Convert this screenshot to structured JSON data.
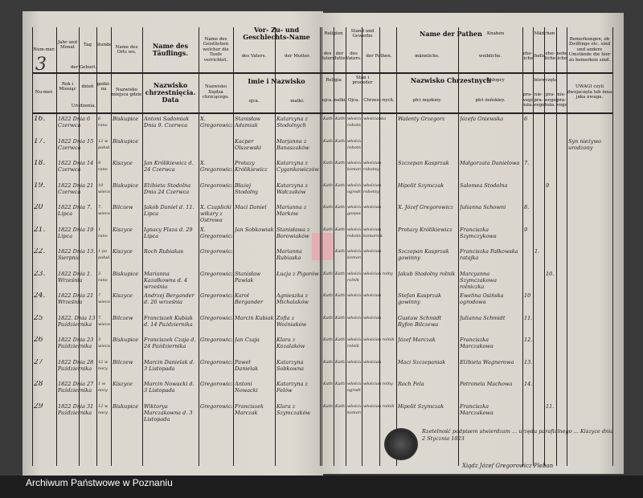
{
  "page_number": "3",
  "archive_label": "Archiwum Państwowe w Poznaniu",
  "headers_left": [
    {
      "de": "Num-mer.",
      "pl": "Nu-mer."
    },
    {
      "de": "Jahr und Monat",
      "pl": "Rok i Miesiąc"
    },
    {
      "de": "Tag",
      "pl": "dzień"
    },
    {
      "de": "Stunde",
      "pl": "godzi-na"
    },
    {
      "de": "Name des Orts wo.",
      "pl": "Nazwisko miejsca gdzie"
    },
    {
      "de": "Name des Täuflings.",
      "pl": "Nazwisko chrzestnięcia. Data"
    },
    {
      "de": "Name des Geistlichen welcher die Taufe verrichtet.",
      "pl": "Nazwisko Xiędza chrzcącego."
    },
    {
      "de": "des Vaters.",
      "pl": "ojca."
    },
    {
      "de": "der Mutter.",
      "pl": "matki."
    }
  ],
  "header_groups_left": {
    "birth_de": "der Geburt.",
    "birth_pl": "Urodzenia.",
    "parents_de": "Vor- Zu- und Geschlechts-Name",
    "parents_pl": "Imie i Nazwisko"
  },
  "headers_right": [
    {
      "de": "des Vaters",
      "pl": "ojca."
    },
    {
      "de": "der Mutter",
      "pl": "matki."
    },
    {
      "de": "des Vaters.",
      "pl": "Ojca."
    },
    {
      "de": "der Pathen.",
      "pl": "Chrzest-nych."
    },
    {
      "de": "männliche.",
      "pl": "płci męzkiey."
    },
    {
      "de": "weibliche.",
      "pl": "płci żeńskiey."
    },
    {
      "de": "ehe-liche",
      "pl": "pra-wego łoża."
    },
    {
      "de": "uneheliche",
      "pl": "nie-pra-wego"
    },
    {
      "de": "ehe-liche",
      "pl": "pra-wego łoża."
    },
    {
      "de": "unehe-liche",
      "pl": "nie-pra-wego"
    },
    {
      "de": "Bemerkungen, ob Zwillinge etc. sind und andere Umstände die hier zu bemerken sind.",
      "pl": "UWAGI czyli dwojaczęta lub inna jaka uwaga."
    }
  ],
  "header_groups_right": {
    "religion_de": "Religion",
    "religion_pl": "Religia",
    "stand_de": "Stand und Gewerbe",
    "stand_pl": "Stan i proceder",
    "godparents_de": "Name der Pathen",
    "godparents_pl": "Nazwisko Chrzestnych",
    "boys_de": "Knaben",
    "boys_pl": "Chłopcy",
    "girls_de": "Mädchen",
    "girls_pl": "Dziewczęta"
  },
  "entries": [
    {
      "nr": "16.",
      "date": "1822 Dnia 6 Czerwca",
      "hour": "6 rano",
      "place": "Biskupice",
      "child": "Antoni Sadomiak Dnia 9. Czerwca",
      "priest": "X. Gregorowicz",
      "father": "Stanisław Adamiak",
      "mother": "Katarzyna z Stodolnych",
      "rel_f": "Kath",
      "rel_m": "Kath",
      "stand_f": "włościan robotny",
      "stand_g": "włościanka",
      "godfather": "Walenty Grzegorz",
      "godmother": "Józefa Gniewska",
      "boys_l": "6",
      "boys_i": "",
      "girls_l": "",
      "girls_i": "",
      "remarks": ""
    },
    {
      "nr": "17.",
      "date": "1822 Dnia 15 Czerwca",
      "hour": "12 w połud.",
      "place": "Biskupice",
      "child": "",
      "priest": "",
      "father": "Kacper Olszewski",
      "mother": "Marjanna z Banaszaków",
      "rel_f": "Kath",
      "rel_m": "Kath",
      "stand_f": "włościan robotny",
      "stand_g": "",
      "godfather": "",
      "godmother": "",
      "boys_l": "",
      "boys_i": "",
      "girls_l": "",
      "girls_i": "",
      "remarks": "Syn nieżywo urodzony"
    },
    {
      "nr": "18.",
      "date": "1822 Dnia 14 Czerwca",
      "hour": "8 rano",
      "place": "Kiszyce",
      "child": "Jan Królikiewicz d. 24 Czerwca",
      "priest": "X. Gregorowicz",
      "father": "Protazy Królikiewicz",
      "mother": "Katarzyna z Cygankowiczów",
      "rel_f": "Kath",
      "rel_m": "Kath",
      "stand_f": "włościan komornik",
      "stand_g": "włościan robotny",
      "godfather": "Szczepan Kasprzak",
      "godmother": "Małgorzata Danielowa",
      "boys_l": "7.",
      "boys_i": "",
      "girls_l": "",
      "girls_i": "",
      "remarks": ""
    },
    {
      "nr": "19.",
      "date": "1822 Dnia 21 Czerwca",
      "hour": "10 wieczór",
      "place": "Biskupice",
      "child": "Elżbieta Stodolna Dnia 24 Czerwca",
      "priest": "Gregorowicz",
      "father": "Błażej Stodolny",
      "mother": "Katarzyna z Wałczaków",
      "rel_f": "Kath",
      "rel_m": "Kath",
      "stand_f": "włościan ogrodnik",
      "stand_g": "włościan robotny",
      "godfather": "Hipolit Szymczak",
      "godmother": "Salomea Stodolna",
      "boys_l": "",
      "boys_i": "",
      "girls_l": "9",
      "girls_i": "",
      "remarks": ""
    },
    {
      "nr": "20",
      "date": "1822 Dnia 7. Lipca",
      "hour": "7. wieczór",
      "place": "Bilczew",
      "child": "Jakób Daniel d. 11. Lipca",
      "priest": "X. Czaplicki wikary z Ostrowa",
      "father": "Maci Daniel",
      "mother": "Marianna z Marków",
      "rel_f": "Kath",
      "rel_m": "Kath",
      "stand_f": "włościan gospodarz",
      "stand_g": "włościan",
      "godfather": "X. Józef Gregorowicz",
      "godmother": "Julianna Schowni",
      "boys_l": "8.",
      "boys_i": "",
      "girls_l": "",
      "girls_i": "",
      "remarks": ""
    },
    {
      "nr": "21.",
      "date": "1822 Dnia 19 Lipca",
      "hour": "1 rano",
      "place": "Kiszyce",
      "child": "Ignacy Flaza d. 29 Lipca",
      "priest": "X. Gregorowicz",
      "father": "Jan Sobkowiak",
      "mother": "Stanisława z Borowiaków",
      "rel_f": "Kath",
      "rel_m": "Kath",
      "stand_f": "włościan robotny",
      "stand_g": "włościan komornik",
      "godfather": "Protazy Królikiewicz",
      "godmother": "Franciszka Szymczykowa",
      "boys_l": "9",
      "boys_i": "",
      "girls_l": "",
      "girls_i": "",
      "remarks": ""
    },
    {
      "nr": "22.",
      "date": "1822 Dnia 13. Sierpnia",
      "hour": "1 po połud.",
      "place": "Kiszyce",
      "child": "Roch Rubiakas",
      "priest": "Gregorowicz",
      "father": "",
      "mother": "Marianna Rubiaska",
      "rel_f": "",
      "rel_m": "Kath",
      "stand_f": "włościan komornica",
      "stand_g": "włościan",
      "godfather": "Szczepan Kasprzak gowinny",
      "godmother": "Franciszka Pałkowska ratajka",
      "boys_l": "",
      "boys_i": "1.",
      "girls_l": "",
      "girls_i": "",
      "remarks": ""
    },
    {
      "nr": "23.",
      "date": "1822 Dnia 1. Września",
      "hour": "3 rano",
      "place": "Biskupice",
      "child": "Marianna Kazałkowna d. 4 września",
      "priest": "Gregorowicz",
      "father": "Stanisław Pawlak",
      "mother": "Łucja z Pigorów",
      "rel_f": "Kath",
      "rel_m": "Kath",
      "stand_f": "włościan rolnik",
      "stand_g": "włościan rolny",
      "godfather": "Jakub Stodolny rolnik",
      "godmother": "Marcyanna Szymczakowa rolniczka",
      "boys_l": "",
      "boys_i": "",
      "girls_l": "10.",
      "girls_i": "",
      "remarks": ""
    },
    {
      "nr": "24.",
      "date": "1822 Dnia 21 Września",
      "hour": "7 wieczór",
      "place": "Kiszyce",
      "child": "Andrzej Bergander d. 26 września",
      "priest": "Gregorowicz",
      "father": "Karol Bergander",
      "mother": "Agnieszka z Michalaków",
      "rel_f": "Kath",
      "rel_m": "Kath",
      "stand_f": "włościan",
      "stand_g": "włościan",
      "godfather": "Stefan Kasprzak gowinny",
      "godmother": "Ewelina Osińska ogrodowa",
      "boys_l": "10",
      "boys_i": "",
      "girls_l": "",
      "girls_i": "",
      "remarks": ""
    },
    {
      "nr": "25",
      "date": "1822. Dnia 13 Października",
      "hour": "7. wieczór",
      "place": "Bilczew",
      "child": "Franciszek Kubiak d. 14 Października",
      "priest": "Gregorowicz",
      "father": "Marcin Kubiak",
      "mother": "Zofia z Woźniaków",
      "rel_f": "Kath",
      "rel_m": "Kath",
      "stand_f": "włościan",
      "stand_g": "włościan",
      "godfather": "Gustaw Schmidt Ryfon Bilczewa",
      "godmother": "Julianna Schmidt",
      "boys_l": "11.",
      "boys_i": "",
      "girls_l": "",
      "girls_i": "",
      "remarks": ""
    },
    {
      "nr": "26",
      "date": "1822 Dnia 23 Października",
      "hour": "3 wieczór",
      "place": "Biskupice",
      "child": "Franciszek Czaja d. 24 Października",
      "priest": "Gregorowicz",
      "father": "Jan Czaja",
      "mother": "Klara z Kozalaków",
      "rel_f": "Kath",
      "rel_m": "Kath",
      "stand_f": "włościan rolnik",
      "stand_g": "włościan rolnik",
      "godfather": "Józef Marczak",
      "godmother": "Franciszka Marczakowa",
      "boys_l": "12.",
      "boys_i": "",
      "girls_l": "",
      "girls_i": "",
      "remarks": ""
    },
    {
      "nr": "27",
      "date": "1822 Dnia 28 Października",
      "hour": "12 w nocy",
      "place": "Bilczew",
      "child": "Marcin Danielak d. 3 Listopada",
      "priest": "Gregorowicz",
      "father": "Paweł Danielak",
      "mother": "Katarzyna Sobkowna",
      "rel_f": "Kath",
      "rel_m": "Kath",
      "stand_f": "włościan",
      "stand_g": "włościan",
      "godfather": "Maci Szczepaniak",
      "godmother": "Elżbieta Wagnerowa",
      "boys_l": "13.",
      "boys_i": "",
      "girls_l": "",
      "girls_i": "",
      "remarks": ""
    },
    {
      "nr": "28",
      "date": "1822 Dnia 27 Października",
      "hour": "1 w nocy",
      "place": "Kiszyce",
      "child": "Marcin Nowacki d. 3 Listopada",
      "priest": "Gregorowicz",
      "father": "Antoni Nowacki",
      "mother": "Katarzyna z Felów",
      "rel_f": "Kath",
      "rel_m": "Kath",
      "stand_f": "włościan ogrodnik",
      "stand_g": "włościan rolny",
      "godfather": "Roch Fela",
      "godmother": "Petronela Machowa",
      "boys_l": "14.",
      "boys_i": "",
      "girls_l": "",
      "girls_i": "",
      "remarks": ""
    },
    {
      "nr": "29",
      "date": "1822 Dnia 31 Października",
      "hour": "12 w nocy",
      "place": "Biskupice",
      "child": "Wiktorya Marczakowna d. 3 Listopada",
      "priest": "Gregorowicz",
      "father": "Franciszek Marczak",
      "mother": "Klara z Szymczaków",
      "rel_f": "Kath",
      "rel_m": "Kath",
      "stand_f": "włościan komornik",
      "stand_g": "włościan rolnik",
      "godfather": "Hipolit Szymczak",
      "godmother": "Franciszka Marczakowa",
      "boys_l": "",
      "boys_i": "",
      "girls_l": "11.",
      "girls_i": "",
      "remarks": ""
    }
  ],
  "attestation": "Rzetelność podpisem stwierdzam ... urzędu parafialnego ... Kiszyce dnia 2 Stycznia 1823",
  "signature": "Xiądz Józef Gregorowicz Pleban"
}
